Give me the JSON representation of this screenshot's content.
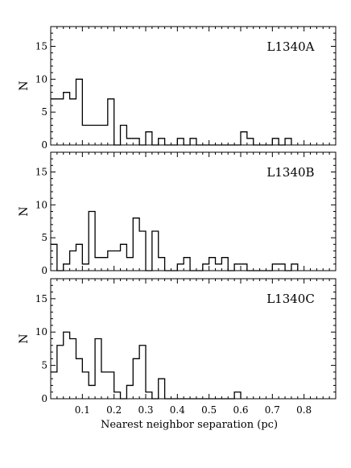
{
  "chart_data": [
    {
      "type": "bar",
      "style": "step-histogram",
      "label": "L1340A",
      "ylabel": "N",
      "ylim": [
        0,
        18
      ],
      "xlim": [
        0,
        0.9
      ],
      "yticks": [
        "0",
        "5",
        "10",
        "15"
      ],
      "bin_width": 0.02,
      "bins_x": [
        0.0,
        0.02,
        0.04,
        0.06,
        0.08,
        0.1,
        0.12,
        0.14,
        0.16,
        0.18,
        0.2,
        0.22,
        0.24,
        0.26,
        0.28,
        0.3,
        0.32,
        0.34,
        0.36,
        0.38,
        0.4,
        0.42,
        0.44,
        0.46,
        0.48,
        0.5,
        0.52,
        0.54,
        0.56,
        0.58,
        0.6,
        0.62,
        0.64,
        0.66,
        0.68,
        0.7,
        0.72,
        0.74,
        0.76,
        0.78,
        0.8,
        0.82,
        0.84,
        0.86,
        0.88
      ],
      "values": [
        7,
        7,
        8,
        7,
        10,
        3,
        3,
        3,
        3,
        7,
        0,
        3,
        1,
        1,
        0,
        2,
        0,
        1,
        0,
        0,
        1,
        0,
        1,
        0,
        0,
        0,
        0,
        0,
        0,
        0,
        2,
        1,
        0,
        0,
        0,
        1,
        0,
        1,
        0,
        0,
        0,
        0,
        0,
        0,
        0
      ]
    },
    {
      "type": "bar",
      "style": "step-histogram",
      "label": "L1340B",
      "ylabel": "N",
      "ylim": [
        0,
        18
      ],
      "xlim": [
        0,
        0.9
      ],
      "yticks": [
        "0",
        "5",
        "10",
        "15"
      ],
      "bin_width": 0.02,
      "bins_x": [
        0.0,
        0.02,
        0.04,
        0.06,
        0.08,
        0.1,
        0.12,
        0.14,
        0.16,
        0.18,
        0.2,
        0.22,
        0.24,
        0.26,
        0.28,
        0.3,
        0.32,
        0.34,
        0.36,
        0.38,
        0.4,
        0.42,
        0.44,
        0.46,
        0.48,
        0.5,
        0.52,
        0.54,
        0.56,
        0.58,
        0.6,
        0.62,
        0.64,
        0.66,
        0.68,
        0.7,
        0.72,
        0.74,
        0.76,
        0.78,
        0.8,
        0.82,
        0.84,
        0.86,
        0.88
      ],
      "values": [
        4,
        0,
        1,
        3,
        4,
        1,
        9,
        2,
        2,
        3,
        3,
        4,
        2,
        8,
        6,
        0,
        6,
        2,
        0,
        0,
        1,
        2,
        0,
        0,
        1,
        2,
        1,
        2,
        0,
        1,
        1,
        0,
        0,
        0,
        0,
        1,
        1,
        0,
        1,
        0,
        0,
        0,
        0,
        0,
        0
      ]
    },
    {
      "type": "bar",
      "style": "step-histogram",
      "label": "L1340C",
      "ylabel": "N",
      "ylim": [
        0,
        18
      ],
      "xlim": [
        0,
        0.9
      ],
      "yticks": [
        "0",
        "5",
        "10",
        "15"
      ],
      "xticks": [
        "0.1",
        "0.2",
        "0.3",
        "0.4",
        "0.5",
        "0.6",
        "0.7",
        "0.8"
      ],
      "xlabel": "Nearest neighbor separation (pc)",
      "bin_width": 0.02,
      "bins_x": [
        0.0,
        0.02,
        0.04,
        0.06,
        0.08,
        0.1,
        0.12,
        0.14,
        0.16,
        0.18,
        0.2,
        0.22,
        0.24,
        0.26,
        0.28,
        0.3,
        0.32,
        0.34,
        0.36,
        0.38,
        0.4,
        0.42,
        0.44,
        0.46,
        0.48,
        0.5,
        0.52,
        0.54,
        0.56,
        0.58,
        0.6,
        0.62,
        0.64,
        0.66,
        0.68,
        0.7,
        0.72,
        0.74,
        0.76,
        0.78,
        0.8,
        0.82,
        0.84,
        0.86,
        0.88
      ],
      "values": [
        4,
        8,
        10,
        9,
        6,
        4,
        2,
        9,
        4,
        4,
        1,
        0,
        2,
        6,
        8,
        1,
        0,
        3,
        0,
        0,
        0,
        0,
        0,
        0,
        0,
        0,
        0,
        0,
        0,
        1,
        0,
        0,
        0,
        0,
        0,
        0,
        0,
        0,
        0,
        0,
        0,
        0,
        0,
        0,
        0
      ]
    }
  ]
}
